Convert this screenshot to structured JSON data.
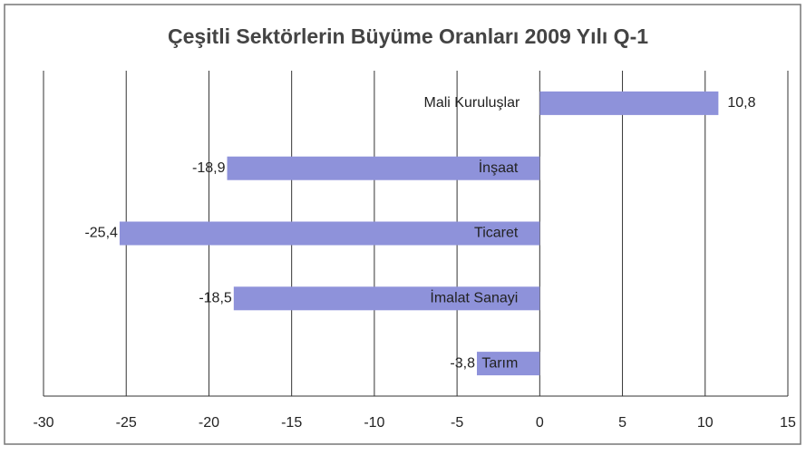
{
  "chart_data": {
    "type": "hbar",
    "title": "Çeşitli Sektörlerin Büyüme Oranları 2009 Yılı Q-1",
    "categories": [
      "Mali Kuruluşlar",
      "İnşaat",
      "Ticaret",
      "İmalat Sanayi",
      "Tarım"
    ],
    "values": [
      10.8,
      -18.9,
      -25.4,
      -18.5,
      -3.8
    ],
    "value_labels": [
      "10,8",
      "-18,9",
      "-25,4",
      "-18,5",
      "-3,8"
    ],
    "color": "#8e92da",
    "xlim": [
      -30,
      15
    ],
    "xticks": [
      -30,
      -25,
      -20,
      -15,
      -10,
      -5,
      0,
      5,
      10,
      15
    ],
    "grid": true
  }
}
